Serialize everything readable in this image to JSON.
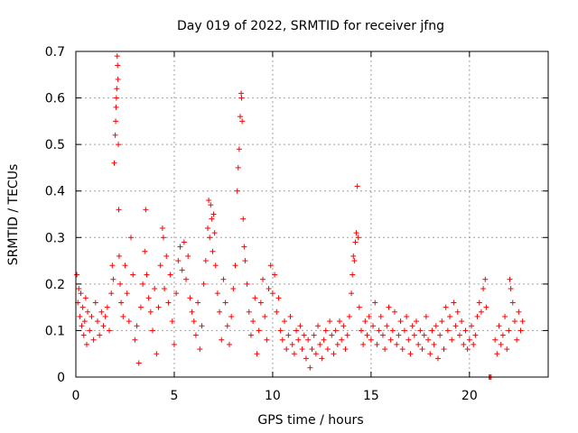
{
  "chart_data": {
    "type": "scatter",
    "title": "Day 019 of 2022, SRMTID for receiver jfng",
    "xlabel": "GPS time / hours",
    "ylabel": "SRMTID / TECUs",
    "xlim": [
      0,
      24
    ],
    "ylim": [
      0,
      0.7
    ],
    "xticks": [
      "0",
      "5",
      "10",
      "15",
      "20"
    ],
    "yticks": [
      "0",
      "0.1",
      "0.2",
      "0.3",
      "0.4",
      "0.5",
      "0.6",
      "0.7"
    ],
    "grid": true,
    "marker": "+",
    "color": "#ff0000",
    "series": [
      {
        "name": "SRMTID",
        "points": [
          [
            0.05,
            0.22
          ],
          [
            0.1,
            0.16
          ],
          [
            0.15,
            0.19
          ],
          [
            0.2,
            0.13
          ],
          [
            0.25,
            0.18
          ],
          [
            0.3,
            0.11
          ],
          [
            0.35,
            0.15
          ],
          [
            0.4,
            0.09
          ],
          [
            0.45,
            0.12
          ],
          [
            0.5,
            0.17
          ],
          [
            0.55,
            0.07
          ],
          [
            0.6,
            0.14
          ],
          [
            0.7,
            0.1
          ],
          [
            0.8,
            0.13
          ],
          [
            0.9,
            0.08
          ],
          [
            1.0,
            0.16
          ],
          [
            1.1,
            0.12
          ],
          [
            1.2,
            0.09
          ],
          [
            1.3,
            0.14
          ],
          [
            1.4,
            0.11
          ],
          [
            1.5,
            0.13
          ],
          [
            1.6,
            0.15
          ],
          [
            1.7,
            0.1
          ],
          [
            1.8,
            0.18
          ],
          [
            1.85,
            0.24
          ],
          [
            1.9,
            0.21
          ],
          [
            1.95,
            0.46
          ],
          [
            2.0,
            0.52
          ],
          [
            2.02,
            0.55
          ],
          [
            2.04,
            0.58
          ],
          [
            2.06,
            0.6
          ],
          [
            2.08,
            0.62
          ],
          [
            2.1,
            0.69
          ],
          [
            2.12,
            0.67
          ],
          [
            2.14,
            0.64
          ],
          [
            2.16,
            0.5
          ],
          [
            2.18,
            0.36
          ],
          [
            2.2,
            0.26
          ],
          [
            2.25,
            0.2
          ],
          [
            2.3,
            0.16
          ],
          [
            2.4,
            0.13
          ],
          [
            2.5,
            0.24
          ],
          [
            2.6,
            0.18
          ],
          [
            2.7,
            0.12
          ],
          [
            2.8,
            0.3
          ],
          [
            2.9,
            0.22
          ],
          [
            3.0,
            0.08
          ],
          [
            3.1,
            0.11
          ],
          [
            3.2,
            0.03
          ],
          [
            3.3,
            0.15
          ],
          [
            3.4,
            0.2
          ],
          [
            3.5,
            0.27
          ],
          [
            3.55,
            0.36
          ],
          [
            3.6,
            0.22
          ],
          [
            3.7,
            0.17
          ],
          [
            3.8,
            0.14
          ],
          [
            3.9,
            0.1
          ],
          [
            4.0,
            0.19
          ],
          [
            4.1,
            0.05
          ],
          [
            4.2,
            0.15
          ],
          [
            4.3,
            0.24
          ],
          [
            4.4,
            0.32
          ],
          [
            4.45,
            0.3
          ],
          [
            4.5,
            0.19
          ],
          [
            4.6,
            0.26
          ],
          [
            4.7,
            0.16
          ],
          [
            4.8,
            0.22
          ],
          [
            4.9,
            0.12
          ],
          [
            5.0,
            0.07
          ],
          [
            5.1,
            0.18
          ],
          [
            5.2,
            0.25
          ],
          [
            5.3,
            0.28
          ],
          [
            5.4,
            0.23
          ],
          [
            5.5,
            0.29
          ],
          [
            5.6,
            0.21
          ],
          [
            5.7,
            0.26
          ],
          [
            5.8,
            0.17
          ],
          [
            5.9,
            0.14
          ],
          [
            6.0,
            0.12
          ],
          [
            6.1,
            0.09
          ],
          [
            6.2,
            0.16
          ],
          [
            6.3,
            0.06
          ],
          [
            6.4,
            0.11
          ],
          [
            6.5,
            0.2
          ],
          [
            6.6,
            0.25
          ],
          [
            6.7,
            0.32
          ],
          [
            6.75,
            0.38
          ],
          [
            6.8,
            0.3
          ],
          [
            6.85,
            0.37
          ],
          [
            6.9,
            0.34
          ],
          [
            6.95,
            0.27
          ],
          [
            7.0,
            0.35
          ],
          [
            7.05,
            0.31
          ],
          [
            7.1,
            0.24
          ],
          [
            7.2,
            0.18
          ],
          [
            7.3,
            0.14
          ],
          [
            7.4,
            0.08
          ],
          [
            7.5,
            0.21
          ],
          [
            7.6,
            0.16
          ],
          [
            7.7,
            0.11
          ],
          [
            7.8,
            0.07
          ],
          [
            7.9,
            0.13
          ],
          [
            8.0,
            0.19
          ],
          [
            8.1,
            0.24
          ],
          [
            8.2,
            0.4
          ],
          [
            8.25,
            0.45
          ],
          [
            8.3,
            0.49
          ],
          [
            8.35,
            0.56
          ],
          [
            8.4,
            0.61
          ],
          [
            8.42,
            0.6
          ],
          [
            8.45,
            0.55
          ],
          [
            8.5,
            0.34
          ],
          [
            8.55,
            0.28
          ],
          [
            8.6,
            0.25
          ],
          [
            8.7,
            0.2
          ],
          [
            8.8,
            0.14
          ],
          [
            8.9,
            0.09
          ],
          [
            9.0,
            0.12
          ],
          [
            9.1,
            0.17
          ],
          [
            9.2,
            0.05
          ],
          [
            9.3,
            0.1
          ],
          [
            9.4,
            0.16
          ],
          [
            9.5,
            0.21
          ],
          [
            9.6,
            0.13
          ],
          [
            9.7,
            0.08
          ],
          [
            9.8,
            0.19
          ],
          [
            9.9,
            0.24
          ],
          [
            10.0,
            0.18
          ],
          [
            10.1,
            0.22
          ],
          [
            10.2,
            0.14
          ],
          [
            10.3,
            0.17
          ],
          [
            10.4,
            0.1
          ],
          [
            10.5,
            0.08
          ],
          [
            10.6,
            0.12
          ],
          [
            10.7,
            0.06
          ],
          [
            10.8,
            0.09
          ],
          [
            10.9,
            0.13
          ],
          [
            11.0,
            0.07
          ],
          [
            11.1,
            0.05
          ],
          [
            11.2,
            0.1
          ],
          [
            11.3,
            0.08
          ],
          [
            11.4,
            0.11
          ],
          [
            11.5,
            0.06
          ],
          [
            11.6,
            0.09
          ],
          [
            11.7,
            0.04
          ],
          [
            11.8,
            0.08
          ],
          [
            11.9,
            0.02
          ],
          [
            12.0,
            0.06
          ],
          [
            12.1,
            0.09
          ],
          [
            12.2,
            0.05
          ],
          [
            12.3,
            0.11
          ],
          [
            12.4,
            0.07
          ],
          [
            12.5,
            0.04
          ],
          [
            12.6,
            0.08
          ],
          [
            12.7,
            0.1
          ],
          [
            12.8,
            0.06
          ],
          [
            12.9,
            0.12
          ],
          [
            13.0,
            0.09
          ],
          [
            13.1,
            0.05
          ],
          [
            13.2,
            0.1
          ],
          [
            13.3,
            0.07
          ],
          [
            13.4,
            0.12
          ],
          [
            13.5,
            0.08
          ],
          [
            13.6,
            0.11
          ],
          [
            13.7,
            0.06
          ],
          [
            13.8,
            0.09
          ],
          [
            13.9,
            0.13
          ],
          [
            14.0,
            0.18
          ],
          [
            14.05,
            0.22
          ],
          [
            14.1,
            0.26
          ],
          [
            14.15,
            0.25
          ],
          [
            14.2,
            0.29
          ],
          [
            14.25,
            0.31
          ],
          [
            14.3,
            0.41
          ],
          [
            14.35,
            0.3
          ],
          [
            14.4,
            0.15
          ],
          [
            14.5,
            0.1
          ],
          [
            14.6,
            0.07
          ],
          [
            14.7,
            0.12
          ],
          [
            14.8,
            0.09
          ],
          [
            14.9,
            0.13
          ],
          [
            15.0,
            0.08
          ],
          [
            15.1,
            0.11
          ],
          [
            15.2,
            0.16
          ],
          [
            15.3,
            0.07
          ],
          [
            15.4,
            0.1
          ],
          [
            15.5,
            0.13
          ],
          [
            15.6,
            0.09
          ],
          [
            15.7,
            0.06
          ],
          [
            15.8,
            0.11
          ],
          [
            15.9,
            0.15
          ],
          [
            16.0,
            0.08
          ],
          [
            16.1,
            0.1
          ],
          [
            16.2,
            0.14
          ],
          [
            16.3,
            0.07
          ],
          [
            16.4,
            0.09
          ],
          [
            16.5,
            0.12
          ],
          [
            16.6,
            0.06
          ],
          [
            16.7,
            0.1
          ],
          [
            16.8,
            0.13
          ],
          [
            16.9,
            0.08
          ],
          [
            17.0,
            0.05
          ],
          [
            17.1,
            0.11
          ],
          [
            17.2,
            0.09
          ],
          [
            17.3,
            0.12
          ],
          [
            17.4,
            0.07
          ],
          [
            17.5,
            0.1
          ],
          [
            17.6,
            0.06
          ],
          [
            17.7,
            0.09
          ],
          [
            17.8,
            0.13
          ],
          [
            17.9,
            0.08
          ],
          [
            18.0,
            0.05
          ],
          [
            18.1,
            0.1
          ],
          [
            18.2,
            0.07
          ],
          [
            18.3,
            0.11
          ],
          [
            18.4,
            0.04
          ],
          [
            18.5,
            0.09
          ],
          [
            18.6,
            0.12
          ],
          [
            18.7,
            0.06
          ],
          [
            18.8,
            0.15
          ],
          [
            18.9,
            0.1
          ],
          [
            19.0,
            0.13
          ],
          [
            19.1,
            0.08
          ],
          [
            19.2,
            0.16
          ],
          [
            19.3,
            0.11
          ],
          [
            19.4,
            0.14
          ],
          [
            19.5,
            0.09
          ],
          [
            19.6,
            0.12
          ],
          [
            19.7,
            0.07
          ],
          [
            19.8,
            0.1
          ],
          [
            19.9,
            0.06
          ],
          [
            20.0,
            0.08
          ],
          [
            20.1,
            0.11
          ],
          [
            20.2,
            0.07
          ],
          [
            20.3,
            0.09
          ],
          [
            20.4,
            0.13
          ],
          [
            20.5,
            0.16
          ],
          [
            20.6,
            0.14
          ],
          [
            20.7,
            0.19
          ],
          [
            20.8,
            0.21
          ],
          [
            20.85,
            0.15
          ],
          [
            21.0,
            0.0
          ],
          [
            21.05,
            0.0
          ],
          [
            21.1,
            0.0
          ],
          [
            21.3,
            0.08
          ],
          [
            21.4,
            0.05
          ],
          [
            21.5,
            0.11
          ],
          [
            21.6,
            0.07
          ],
          [
            21.7,
            0.09
          ],
          [
            21.8,
            0.13
          ],
          [
            21.9,
            0.06
          ],
          [
            22.0,
            0.1
          ],
          [
            22.05,
            0.21
          ],
          [
            22.1,
            0.19
          ],
          [
            22.2,
            0.16
          ],
          [
            22.3,
            0.12
          ],
          [
            22.4,
            0.08
          ],
          [
            22.5,
            0.14
          ],
          [
            22.6,
            0.1
          ],
          [
            22.7,
            0.12
          ]
        ]
      }
    ]
  }
}
